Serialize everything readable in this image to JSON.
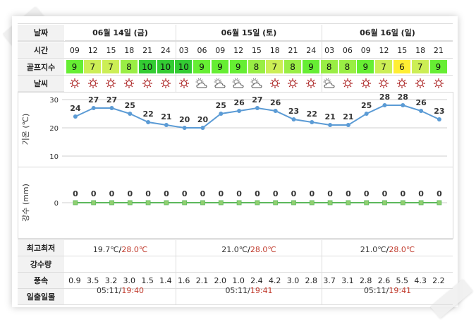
{
  "row_labels": {
    "date": "날짜",
    "time": "시간",
    "golf_index": "골프지수",
    "weather": "날씨",
    "temp_axis": "기온 (℃)",
    "rain_axis": "강수 (mm)",
    "min_max": "최고최저",
    "precipitation": "강수량",
    "wind": "풍속",
    "sunrise_sunset": "일출일몰"
  },
  "days": [
    {
      "label": "06월 14일 (금)",
      "min": "19.7℃",
      "max": "28.0℃",
      "sunrise": "05:11",
      "sunset": "19:40"
    },
    {
      "label": "06월 15일 (토)",
      "min": "21.0℃",
      "max": "28.0℃",
      "sunrise": "05:11",
      "sunset": "19:41"
    },
    {
      "label": "06월 16일 (일)",
      "min": "21.0℃",
      "max": "28.0℃",
      "sunrise": "05:11",
      "sunset": "19:41"
    }
  ],
  "hours": [
    "09",
    "12",
    "15",
    "18",
    "21",
    "24",
    "03",
    "06",
    "09",
    "12",
    "15",
    "18",
    "21",
    "24",
    "03",
    "06",
    "09",
    "12",
    "15",
    "18",
    "21"
  ],
  "golf_index": [
    "9",
    "7",
    "7",
    "8",
    "10",
    "10",
    "10",
    "9",
    "9",
    "9",
    "8",
    "7",
    "8",
    "9",
    "8",
    "8",
    "9",
    "7",
    "6",
    "7",
    "9"
  ],
  "golf_colors": {
    "10": "#33cc33",
    "9": "#66ee33",
    "8": "#99ee44",
    "7": "#ccee55",
    "6": "#ffee33"
  },
  "weather_icons": [
    "sun-icon",
    "sun-icon",
    "sun-icon",
    "sun-icon",
    "sun-icon",
    "sun-icon",
    "sun-icon",
    "partly-cloudy-icon",
    "partly-cloudy-icon",
    "partly-cloudy-icon",
    "partly-cloudy-icon",
    "sun-icon",
    "sun-icon",
    "sun-icon",
    "partly-cloudy-icon",
    "sun-icon",
    "sun-icon",
    "sun-icon",
    "sun-icon",
    "sun-icon",
    "sun-icon"
  ],
  "wind": [
    "0.9",
    "3.5",
    "3.2",
    "3.0",
    "1.5",
    "1.4",
    "1.6",
    "2.1",
    "2.0",
    "1.0",
    "2.4",
    "4.2",
    "3.0",
    "2.8",
    "3.7",
    "3.1",
    "2.8",
    "2.6",
    "5.5",
    "4.3",
    "2.2"
  ],
  "chart_data": [
    {
      "type": "line",
      "ylabel": "기온 (℃)",
      "yticks": [
        "30",
        "20",
        "10"
      ],
      "ylim": [
        10,
        30
      ],
      "x": [
        "09",
        "12",
        "15",
        "18",
        "21",
        "24",
        "03",
        "06",
        "09",
        "12",
        "15",
        "18",
        "21",
        "24",
        "03",
        "06",
        "09",
        "12",
        "15",
        "18",
        "21"
      ],
      "values": [
        24,
        27,
        27,
        25,
        22,
        21,
        20,
        20,
        25,
        26,
        27,
        26,
        23,
        22,
        21,
        21,
        25,
        28,
        28,
        26,
        23
      ],
      "labels": [
        "24",
        "27",
        "27",
        "25",
        "22",
        "21",
        "20",
        "20",
        "25",
        "26",
        "27",
        "26",
        "23",
        "22",
        "21",
        "21",
        "25",
        "28",
        "28",
        "26",
        "23"
      ],
      "color": "#5b9bd5"
    },
    {
      "type": "line",
      "ylabel": "강수 (mm)",
      "yticks": [
        "0"
      ],
      "x": [
        "09",
        "12",
        "15",
        "18",
        "21",
        "24",
        "03",
        "06",
        "09",
        "12",
        "15",
        "18",
        "21",
        "24",
        "03",
        "06",
        "09",
        "12",
        "15",
        "18",
        "21"
      ],
      "values": [
        0,
        0,
        0,
        0,
        0,
        0,
        0,
        0,
        0,
        0,
        0,
        0,
        0,
        0,
        0,
        0,
        0,
        0,
        0,
        0,
        0
      ],
      "labels": [
        "0",
        "0",
        "0",
        "0",
        "0",
        "0",
        "0",
        "0",
        "0",
        "0",
        "0",
        "0",
        "0",
        "0",
        "0",
        "0",
        "0",
        "0",
        "0",
        "0",
        "0"
      ],
      "color": "#5cb85c"
    }
  ]
}
